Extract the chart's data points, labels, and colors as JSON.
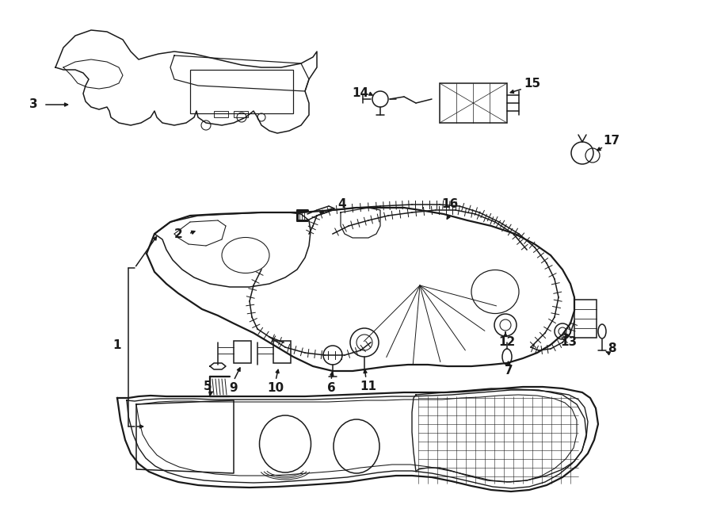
{
  "bg_color": "#ffffff",
  "line_color": "#1a1a1a",
  "lw": 1.1,
  "lw_thick": 1.6,
  "label_fs": 11,
  "label_fw": "bold",
  "fig_w": 9.0,
  "fig_h": 6.61,
  "dpi": 100
}
